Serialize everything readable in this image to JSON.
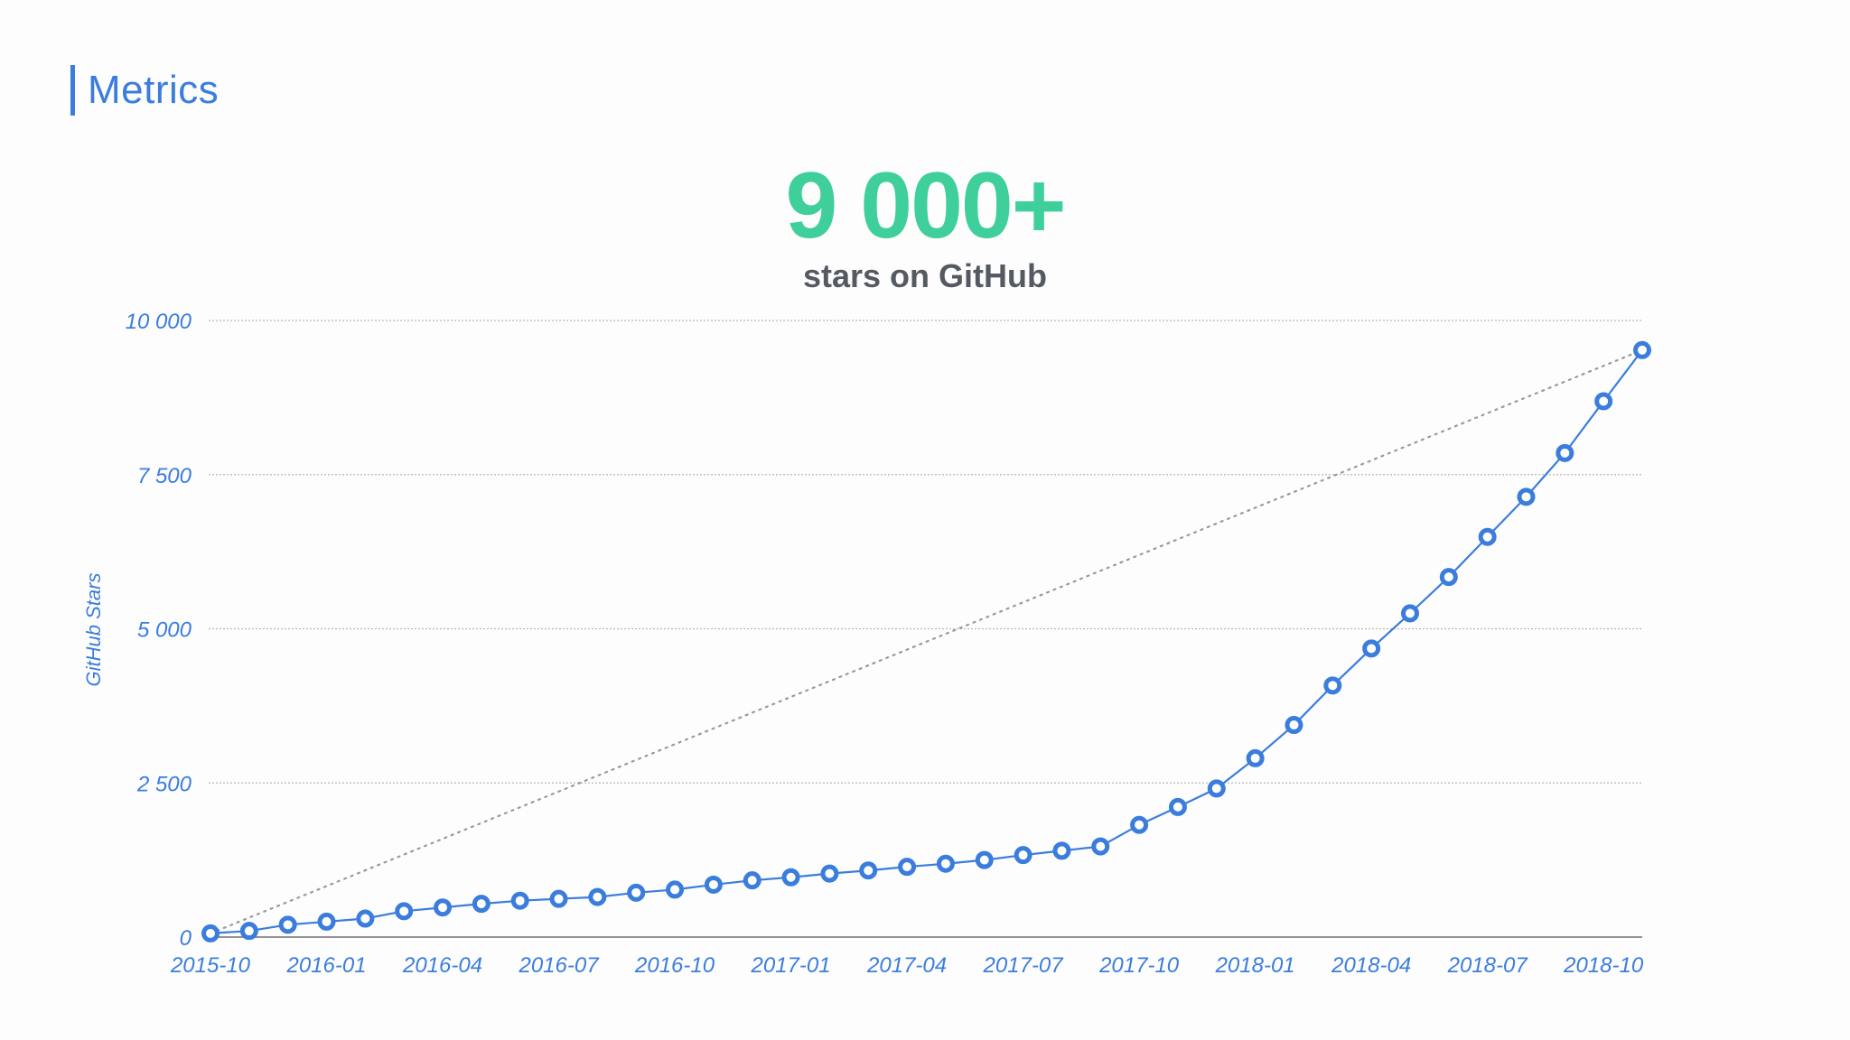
{
  "page": {
    "section_title": "Metrics",
    "headline_number": "9 000+",
    "headline_caption": "stars on GitHub"
  },
  "colors": {
    "accent_blue": "#3b7ddd",
    "headline_green": "#3fcf9a",
    "caption_gray": "#555a62",
    "grid_gray": "#b8b8b8",
    "trend_gray": "#9a9a9a"
  },
  "chart_data": {
    "type": "line",
    "title": "",
    "xlabel": "",
    "ylabel": "GitHub Stars",
    "ylim": [
      0,
      10000
    ],
    "y_ticks": [
      0,
      2500,
      5000,
      7500,
      10000
    ],
    "y_tick_labels": [
      "0",
      "2 500",
      "5 000",
      "7 500",
      "10 000"
    ],
    "x_tick_labels": [
      "2015-10",
      "2016-01",
      "2016-04",
      "2016-07",
      "2016-10",
      "2017-01",
      "2017-04",
      "2017-07",
      "2017-10",
      "2018-01",
      "2018-04",
      "2018-07",
      "2018-10"
    ],
    "x": [
      "2015-10",
      "2015-11",
      "2015-12",
      "2016-01",
      "2016-02",
      "2016-03",
      "2016-04",
      "2016-05",
      "2016-06",
      "2016-07",
      "2016-08",
      "2016-09",
      "2016-10",
      "2016-11",
      "2016-12",
      "2017-01",
      "2017-02",
      "2017-03",
      "2017-04",
      "2017-05",
      "2017-06",
      "2017-07",
      "2017-08",
      "2017-09",
      "2017-10",
      "2017-11",
      "2017-12",
      "2018-01",
      "2018-02",
      "2018-03",
      "2018-04",
      "2018-05",
      "2018-06",
      "2018-07",
      "2018-08",
      "2018-09",
      "2018-10",
      "2018-11"
    ],
    "series": [
      {
        "values": [
          60,
          100,
          200,
          250,
          300,
          420,
          480,
          540,
          590,
          620,
          650,
          720,
          770,
          850,
          920,
          970,
          1030,
          1080,
          1140,
          1190,
          1250,
          1330,
          1400,
          1470,
          1820,
          2110,
          2410,
          2900,
          3440,
          4080,
          4680,
          5250,
          5840,
          6490,
          7140,
          7850,
          8690,
          9520
        ],
        "color": "#3b7ddd",
        "marker": "hollow-circle"
      }
    ],
    "trend_line": {
      "style": "dotted",
      "color": "#9a9a9a",
      "from": {
        "x": "2015-10",
        "y": 60
      },
      "to": {
        "x": "2018-11",
        "y": 9520
      }
    },
    "grid": true,
    "grid_axis": "y",
    "legend": "none"
  }
}
